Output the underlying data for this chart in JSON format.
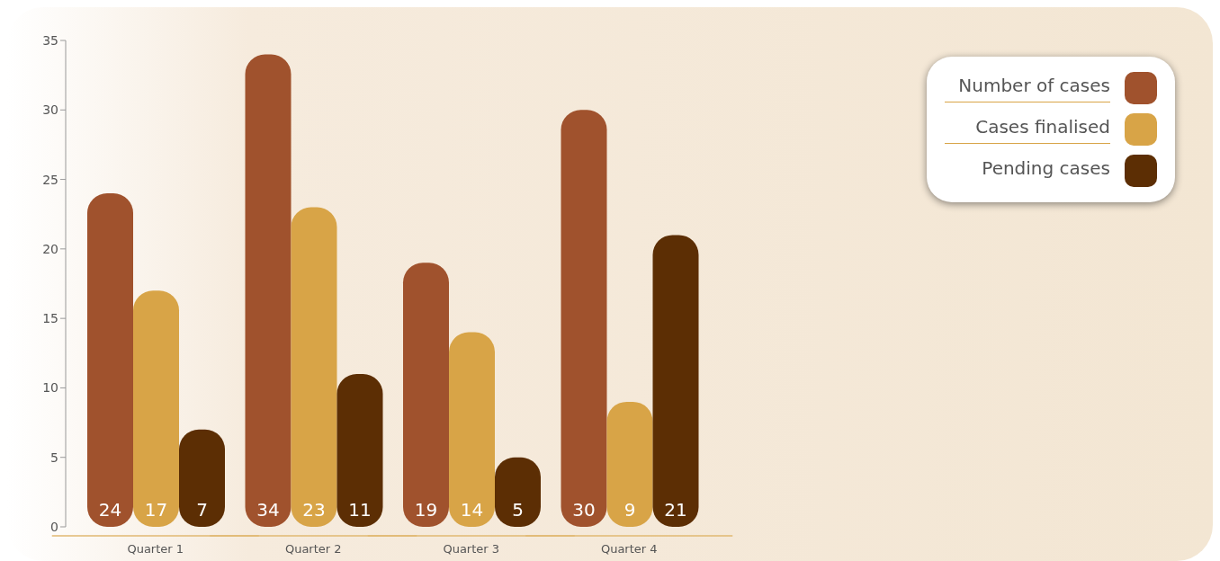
{
  "chart_data": {
    "type": "bar",
    "categories": [
      "Quarter 1",
      "Quarter 2",
      "Quarter 3",
      "Quarter 4"
    ],
    "series": [
      {
        "name": "Number of cases",
        "color": "#a0522d",
        "values": [
          24,
          34,
          19,
          30
        ]
      },
      {
        "name": "Cases finalised",
        "color": "#d8a447",
        "values": [
          17,
          23,
          14,
          9
        ]
      },
      {
        "name": "Pending cases",
        "color": "#5c2e04",
        "values": [
          7,
          11,
          5,
          21
        ]
      }
    ],
    "ylim": [
      0,
      35
    ],
    "yticks": [
      0,
      5,
      10,
      15,
      20,
      25,
      30,
      35
    ],
    "grid": false,
    "legend": "top right",
    "data_labels": true
  }
}
